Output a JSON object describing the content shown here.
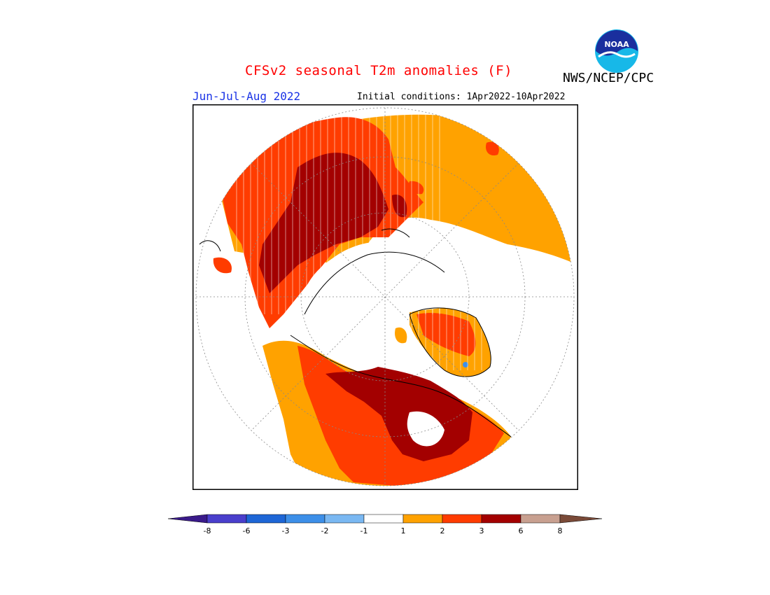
{
  "title": "CFSv2 seasonal T2m anomalies (F)",
  "agency": "NWS/NCEP/CPC",
  "logo_text": "NOAA",
  "season": "Jun-Jul-Aug 2022",
  "initial_conditions": "Initial conditions: 1Apr2022-10Apr2022",
  "legend": {
    "colors": {
      "below_-8": "#3a1a8a",
      "-8_to_-6": "#4a3fcc",
      "-6_to_-3": "#1e66d6",
      "-3_to_-2": "#3d8fe8",
      "-2_to_-1": "#7ab8f2",
      "-1_to_1": "#ffffff",
      "1_to_2": "#ffa200",
      "2_to_3": "#ff3c00",
      "3_to_6": "#a30000",
      "6_to_8": "#c8a090",
      "above_8": "#7a4a38"
    },
    "tick_labels": [
      "-8",
      "-6",
      "-3",
      "-2",
      "-1",
      "1",
      "2",
      "3",
      "6",
      "8"
    ]
  }
}
